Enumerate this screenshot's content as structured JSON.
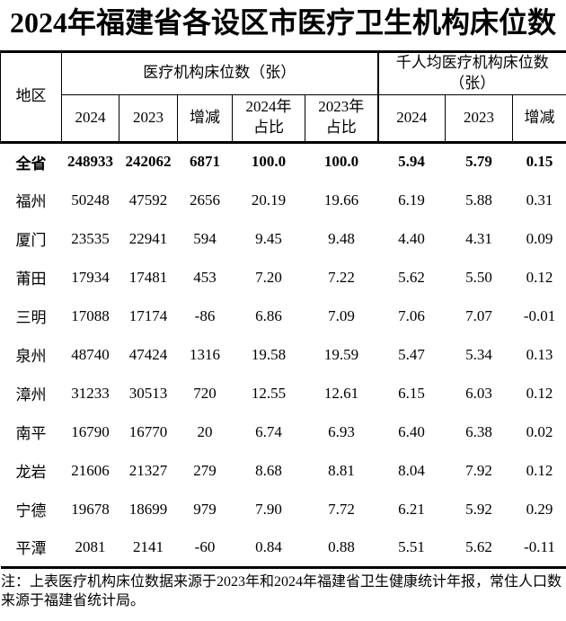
{
  "title": "2024年福建省各设区市医疗卫生机构床位数",
  "table": {
    "region_header": "地区",
    "group1_header": "医疗机构床位数（张）",
    "group2_header": "千人均医疗机构床位数\n（张）",
    "sub_headers": [
      "2024",
      "2023",
      "增减",
      "2024年\n占比",
      "2023年\n占比",
      "2024",
      "2023",
      "增减"
    ],
    "rows": [
      {
        "region": "全省",
        "bold": true,
        "values": [
          "248933",
          "242062",
          "6871",
          "100.0",
          "100.0",
          "5.94",
          "5.79",
          "0.15"
        ]
      },
      {
        "region": "福州",
        "bold": false,
        "values": [
          "50248",
          "47592",
          "2656",
          "20.19",
          "19.66",
          "6.19",
          "5.88",
          "0.31"
        ]
      },
      {
        "region": "厦门",
        "bold": false,
        "values": [
          "23535",
          "22941",
          "594",
          "9.45",
          "9.48",
          "4.40",
          "4.31",
          "0.09"
        ]
      },
      {
        "region": "莆田",
        "bold": false,
        "values": [
          "17934",
          "17481",
          "453",
          "7.20",
          "7.22",
          "5.62",
          "5.50",
          "0.12"
        ]
      },
      {
        "region": "三明",
        "bold": false,
        "values": [
          "17088",
          "17174",
          "-86",
          "6.86",
          "7.09",
          "7.06",
          "7.07",
          "-0.01"
        ]
      },
      {
        "region": "泉州",
        "bold": false,
        "values": [
          "48740",
          "47424",
          "1316",
          "19.58",
          "19.59",
          "5.47",
          "5.34",
          "0.13"
        ]
      },
      {
        "region": "漳州",
        "bold": false,
        "values": [
          "31233",
          "30513",
          "720",
          "12.55",
          "12.61",
          "6.15",
          "6.03",
          "0.12"
        ]
      },
      {
        "region": "南平",
        "bold": false,
        "values": [
          "16790",
          "16770",
          "20",
          "6.74",
          "6.93",
          "6.40",
          "6.38",
          "0.02"
        ]
      },
      {
        "region": "龙岩",
        "bold": false,
        "values": [
          "21606",
          "21327",
          "279",
          "8.68",
          "8.81",
          "8.04",
          "7.92",
          "0.12"
        ]
      },
      {
        "region": "宁德",
        "bold": false,
        "values": [
          "19678",
          "18699",
          "979",
          "7.90",
          "7.72",
          "6.21",
          "5.92",
          "0.29"
        ]
      },
      {
        "region": "平潭",
        "bold": false,
        "values": [
          "2081",
          "2141",
          "-60",
          "0.84",
          "0.88",
          "5.51",
          "5.62",
          "-0.11"
        ]
      }
    ]
  },
  "note": "注：上表医疗机构床位数据来源于2023年和2024年福建省卫生健康统计年报，常住人口数来源于福建省统计局。"
}
